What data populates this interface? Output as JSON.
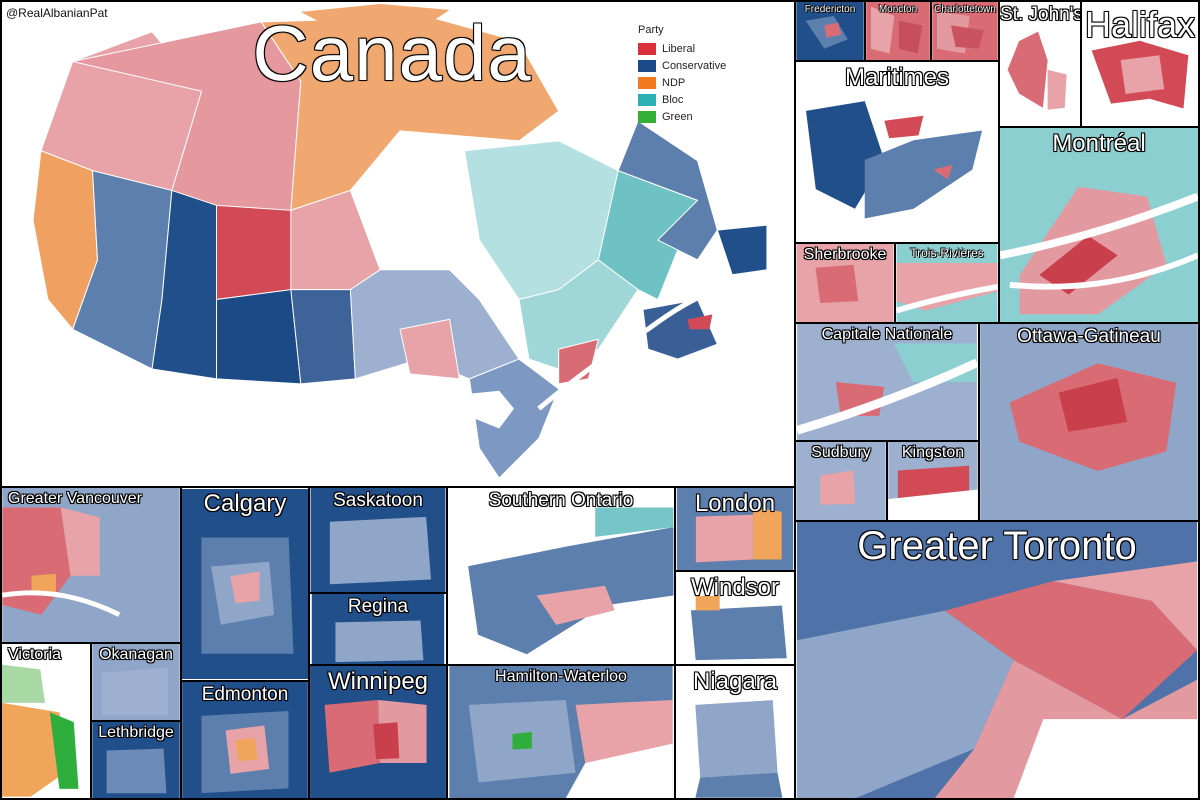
{
  "credit": "@RealAlbanianPat",
  "colors": {
    "liberal": "#d24a56",
    "liberal_light": "#e7a3a8",
    "conservative": "#214f8a",
    "conservative_light": "#94aacb",
    "ndp": "#f0a55a",
    "bloc": "#76c6c9",
    "bloc_light": "#b5e0e1",
    "green": "#2fae3e",
    "water": "#ffffff",
    "border": "#000000"
  },
  "legend": {
    "title": "Party",
    "items": [
      {
        "label": "Liberal",
        "color": "#d9303b"
      },
      {
        "label": "Conservative",
        "color": "#1a4a8a"
      },
      {
        "label": "NDP",
        "color": "#f47a1f"
      },
      {
        "label": "Bloc",
        "color": "#2ab1b3"
      },
      {
        "label": "Green",
        "color": "#33b035"
      }
    ]
  },
  "panels": {
    "canada": "Canada",
    "fredericton": "Fredericton",
    "moncton": "Moncton",
    "charlottetown": "Charlottetown",
    "st_johns": "St. John's",
    "halifax": "Halifax",
    "maritimes": "Maritimes",
    "montreal": "Montréal",
    "sherbrooke": "Sherbrooke",
    "trois_rivieres": "Trois-Rivières",
    "capitale_nationale": "Capitale Nationale",
    "ottawa_gatineau": "Ottawa-Gatineau",
    "sudbury": "Sudbury",
    "kingston": "Kingston",
    "greater_vancouver": "Greater Vancouver",
    "calgary": "Calgary",
    "saskatoon": "Saskatoon",
    "regina": "Regina",
    "southern_ontario": "Southern Ontario",
    "london": "London",
    "windsor": "Windsor",
    "greater_toronto": "Greater Toronto",
    "victoria": "Victoria",
    "okanagan": "Okanagan",
    "lethbridge": "Lethbridge",
    "edmonton": "Edmonton",
    "winnipeg": "Winnipeg",
    "hamilton_waterloo": "Hamilton-Waterloo",
    "niagara": "Niagara"
  }
}
